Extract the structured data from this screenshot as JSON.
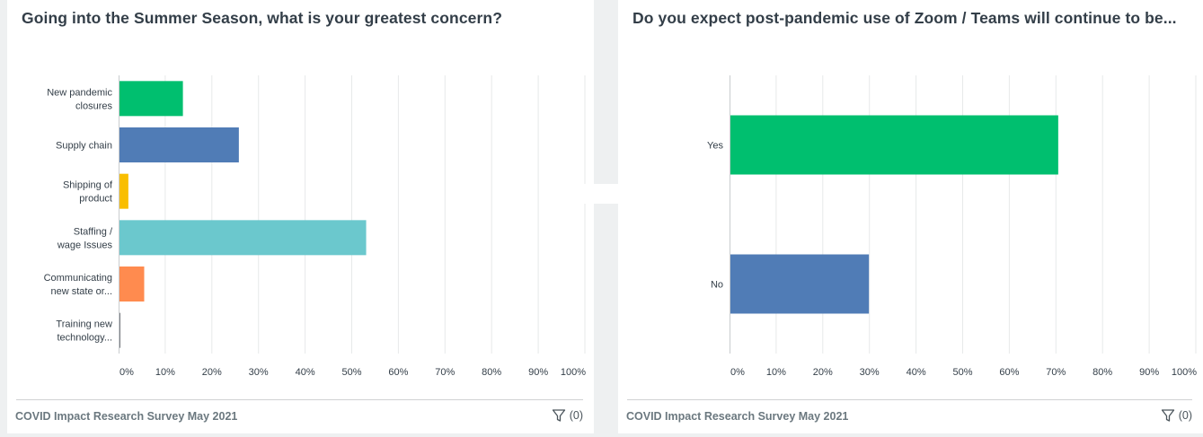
{
  "charts": [
    {
      "title": "Going into the Summer Season, what is your greatest concern?",
      "footer": "COVID Impact Research Survey May 2021",
      "filter_count": "(0)"
    },
    {
      "title": "Do you expect post-pandemic use of Zoom / Teams will continue to be...",
      "footer": "COVID Impact Research Survey May 2021",
      "filter_count": "(0)"
    }
  ],
  "chart_data": [
    {
      "type": "bar",
      "orientation": "horizontal",
      "title": "Going into the Summer Season, what is your greatest concern?",
      "categories": [
        [
          "New pandemic",
          "closures"
        ],
        [
          "Supply chain"
        ],
        [
          "Shipping of",
          "product"
        ],
        [
          "Staffing /",
          "wage Issues"
        ],
        [
          "Communicating",
          "new state or..."
        ],
        [
          "Training new",
          "technology..."
        ]
      ],
      "values": [
        13.6,
        25.6,
        1.9,
        52.9,
        5.3,
        0.2
      ],
      "colors": [
        "#00bf6f",
        "#507cb6",
        "#f9be00",
        "#6bc8cd",
        "#ff8b4f",
        "#7d8186"
      ],
      "xlim": [
        0,
        100
      ],
      "ticks": [
        0,
        10,
        20,
        30,
        40,
        50,
        60,
        70,
        80,
        90,
        100
      ],
      "tick_labels": [
        "0%",
        "10%",
        "20%",
        "30%",
        "40%",
        "50%",
        "60%",
        "70%",
        "80%",
        "90%",
        "100%"
      ],
      "grid": true
    },
    {
      "type": "bar",
      "orientation": "horizontal",
      "title": "Do you expect post-pandemic use of Zoom / Teams will continue to be...",
      "categories": [
        [
          "Yes"
        ],
        [
          "No"
        ]
      ],
      "values": [
        70.3,
        29.7
      ],
      "colors": [
        "#00bf6f",
        "#507cb6"
      ],
      "xlim": [
        0,
        100
      ],
      "ticks": [
        0,
        10,
        20,
        30,
        40,
        50,
        60,
        70,
        80,
        90,
        100
      ],
      "tick_labels": [
        "0%",
        "10%",
        "20%",
        "30%",
        "40%",
        "50%",
        "60%",
        "70%",
        "80%",
        "90%",
        "100%"
      ],
      "grid": true
    }
  ]
}
